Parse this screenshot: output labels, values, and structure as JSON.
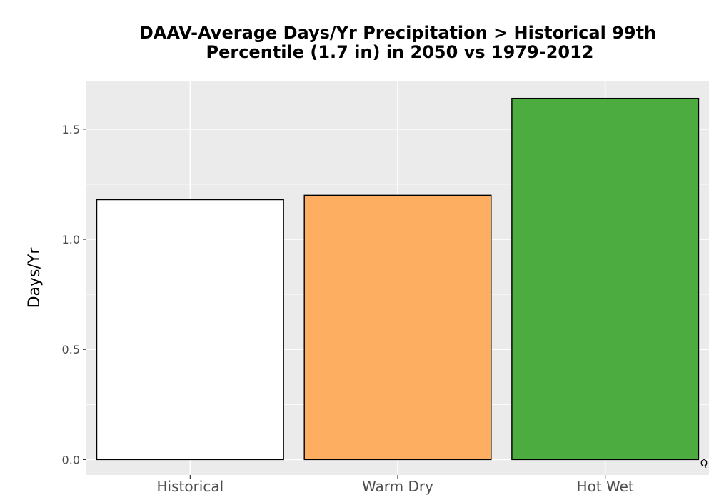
{
  "chart_data": {
    "type": "bar",
    "title_lines": [
      "DAAV-Average Days/Yr Precipitation > Historical 99th",
      "Percentile (1.7 in) in 2050 vs 1979-2012"
    ],
    "xlabel": "",
    "ylabel": "Days/Yr",
    "categories": [
      "Historical",
      "Warm Dry",
      "Hot Wet"
    ],
    "values": [
      1.18,
      1.2,
      1.64
    ],
    "bar_colors": [
      "#ffffff",
      "#fdae61",
      "#4dac3f"
    ],
    "ylim": [
      -0.07,
      1.72
    ],
    "yticks": [
      0.0,
      0.5,
      1.0,
      1.5
    ],
    "ytick_labels": [
      "0.0",
      "0.5",
      "1.0",
      "1.5"
    ],
    "grid": true,
    "panel_background": "#ebebeb",
    "corner_mark": "Q"
  }
}
